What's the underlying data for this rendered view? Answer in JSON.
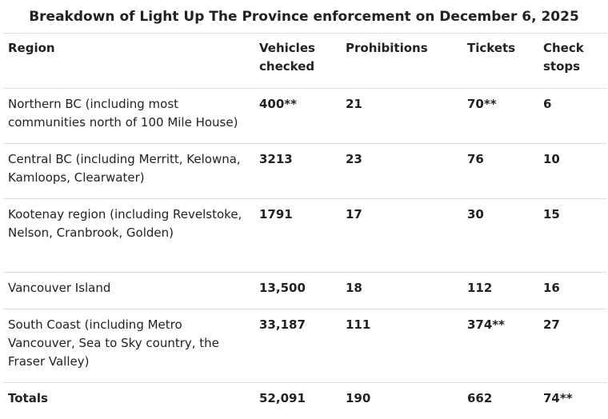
{
  "caption": "Breakdown of Light Up The Province enforcement on December 6, 2025",
  "headers": {
    "region": "Region",
    "vehicles": "Vehicles checked",
    "prohibitions": "Prohibitions",
    "tickets": "Tickets",
    "check_stops": "Check stops"
  },
  "rows": [
    {
      "region": "Northern BC (including most communities north of 100 Mile House)",
      "vehicles": "400**",
      "prohibitions": "21",
      "tickets": "70**",
      "check_stops": "6"
    },
    {
      "region": "Central BC (including Merritt, Kelowna, Kamloops, Clearwater)",
      "vehicles": "3213",
      "prohibitions": "23",
      "tickets": "76",
      "check_stops": "10"
    },
    {
      "region": "Kootenay region (including Revelstoke, Nelson, Cranbrook, Golden)",
      "vehicles": "1791",
      "prohibitions": "17",
      "tickets": "30",
      "check_stops": "15"
    },
    {
      "region": "Vancouver Island",
      "vehicles": "13,500",
      "prohibitions": "18",
      "tickets": "112",
      "check_stops": "16"
    },
    {
      "region": "South Coast (including Metro Vancouver, Sea to Sky country, the Fraser Valley)",
      "vehicles": "33,187",
      "prohibitions": "111",
      "tickets": "374**",
      "check_stops": "27"
    }
  ],
  "totals": {
    "region": "Totals",
    "vehicles": "52,091",
    "prohibitions": "190",
    "tickets": "662",
    "check_stops": "74**"
  }
}
